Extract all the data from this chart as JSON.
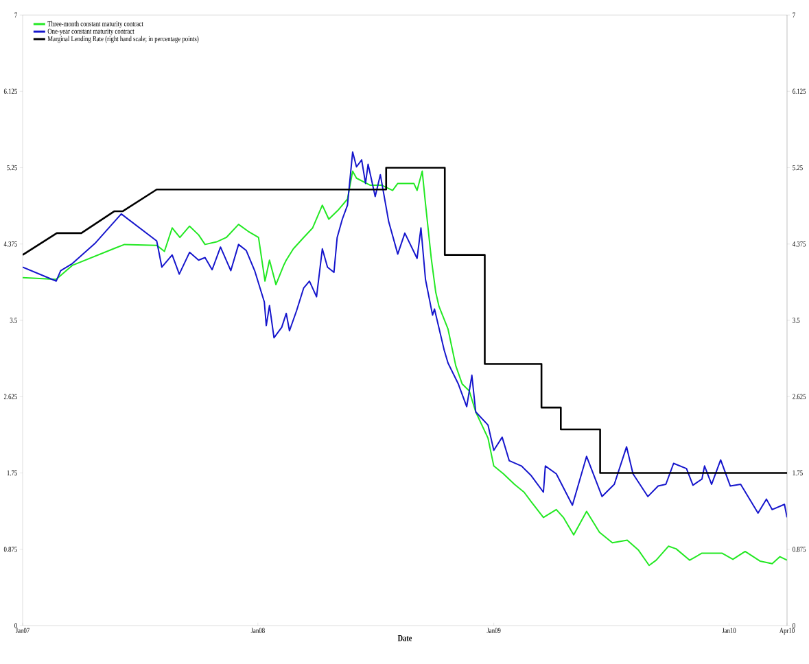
{
  "chart_data": {
    "type": "line",
    "xlabel": "Date",
    "legend": "top left",
    "grid": false,
    "marker": "none",
    "line_style": "solid",
    "xlim": [
      "2007-01-01",
      "2010-04-01"
    ],
    "xticks": [
      {
        "value": "2007-01-01",
        "label": "Jan07"
      },
      {
        "value": "2008-01-01",
        "label": "Jan08"
      },
      {
        "value": "2009-01-01",
        "label": "Jan09"
      },
      {
        "value": "2010-01-01",
        "label": "Jan10"
      },
      {
        "value": "2010-04-01",
        "label": "Apr10"
      }
    ],
    "ylim": [
      0,
      7
    ],
    "yticks": [
      0,
      0.875,
      1.75,
      2.625,
      3.5,
      4.375,
      5.25,
      6.125,
      7
    ],
    "y2lim": [
      0,
      7
    ],
    "y2ticks": [
      0,
      0.875,
      1.75,
      2.625,
      3.5,
      4.375,
      5.25,
      6.125,
      7
    ],
    "series": [
      {
        "name": "Three-month constant maturity contract",
        "color": "#22e822",
        "x": [
          "2007-01-01",
          "2007-02-22",
          "2007-03-19",
          "2007-05-25",
          "2007-06-08",
          "2007-07-28",
          "2007-08-09",
          "2007-08-21",
          "2007-09-02",
          "2007-09-17",
          "2007-10-01",
          "2007-10-11",
          "2007-10-29",
          "2007-11-13",
          "2007-12-02",
          "2007-12-17",
          "2008-01-02",
          "2008-01-12",
          "2008-01-19",
          "2008-01-29",
          "2008-02-10",
          "2008-02-14",
          "2008-02-25",
          "2008-03-12",
          "2008-03-26",
          "2008-04-10",
          "2008-04-20",
          "2008-05-04",
          "2008-05-19",
          "2008-05-27",
          "2008-06-02",
          "2008-06-23",
          "2008-07-11",
          "2008-07-28",
          "2008-08-05",
          "2008-08-30",
          "2008-09-04",
          "2008-09-12",
          "2008-09-17",
          "2008-09-26",
          "2008-10-03",
          "2008-10-08",
          "2008-10-22",
          "2008-11-03",
          "2008-11-13",
          "2008-11-24",
          "2008-12-04",
          "2008-12-23",
          "2009-01-01",
          "2009-01-16",
          "2009-02-02",
          "2009-02-17",
          "2009-02-28",
          "2009-03-19",
          "2009-04-08",
          "2009-04-19",
          "2009-05-05",
          "2009-05-25",
          "2009-06-14",
          "2009-07-04",
          "2009-07-27",
          "2009-08-13",
          "2009-08-30",
          "2009-09-10",
          "2009-09-29",
          "2009-10-11",
          "2009-11-01",
          "2009-11-20",
          "2009-12-21",
          "2010-01-07",
          "2010-01-26",
          "2010-02-18",
          "2010-03-09",
          "2010-03-21",
          "2010-04-01"
        ],
        "values": [
          3.99,
          3.97,
          4.13,
          4.33,
          4.37,
          4.36,
          4.29,
          4.56,
          4.45,
          4.58,
          4.48,
          4.37,
          4.4,
          4.45,
          4.6,
          4.52,
          4.45,
          3.95,
          4.19,
          3.91,
          4.13,
          4.19,
          4.32,
          4.45,
          4.56,
          4.82,
          4.66,
          4.76,
          4.89,
          5.21,
          5.13,
          5.05,
          5.05,
          4.99,
          5.07,
          5.07,
          4.99,
          5.21,
          4.84,
          4.21,
          3.82,
          3.66,
          3.4,
          2.98,
          2.77,
          2.69,
          2.45,
          2.15,
          1.83,
          1.74,
          1.62,
          1.53,
          1.42,
          1.24,
          1.33,
          1.24,
          1.04,
          1.31,
          1.07,
          0.95,
          0.98,
          0.87,
          0.69,
          0.75,
          0.91,
          0.88,
          0.75,
          0.83,
          0.83,
          0.76,
          0.85,
          0.74,
          0.71,
          0.79,
          0.75
        ]
      },
      {
        "name": "One-year constant maturity contract",
        "color": "#1515cc",
        "x": [
          "2007-01-01",
          "2007-02-22",
          "2007-03-01",
          "2007-03-19",
          "2007-04-23",
          "2007-06-03",
          "2007-07-28",
          "2007-08-05",
          "2007-08-21",
          "2007-09-01",
          "2007-09-17",
          "2007-10-01",
          "2007-10-11",
          "2007-10-22",
          "2007-11-04",
          "2007-11-20",
          "2007-12-02",
          "2007-12-14",
          "2007-12-27",
          "2008-01-11",
          "2008-01-14",
          "2008-01-19",
          "2008-01-26",
          "2008-02-07",
          "2008-02-14",
          "2008-02-19",
          "2008-03-01",
          "2008-03-12",
          "2008-03-21",
          "2008-04-01",
          "2008-04-10",
          "2008-04-18",
          "2008-04-28",
          "2008-05-03",
          "2008-05-11",
          "2008-05-19",
          "2008-05-27",
          "2008-06-02",
          "2008-06-10",
          "2008-06-16",
          "2008-06-20",
          "2008-07-01",
          "2008-07-09",
          "2008-07-22",
          "2008-08-05",
          "2008-08-16",
          "2008-09-04",
          "2008-09-10",
          "2008-09-17",
          "2008-09-28",
          "2008-10-01",
          "2008-10-16",
          "2008-10-22",
          "2008-11-07",
          "2008-11-20",
          "2008-11-28",
          "2008-12-04",
          "2008-12-23",
          "2009-01-01",
          "2009-01-14",
          "2009-01-25",
          "2009-02-13",
          "2009-02-28",
          "2009-03-19",
          "2009-03-22",
          "2009-04-08",
          "2009-05-03",
          "2009-05-25",
          "2009-06-18",
          "2009-07-07",
          "2009-07-26",
          "2009-08-05",
          "2009-08-28",
          "2009-09-13",
          "2009-09-25",
          "2009-10-07",
          "2009-10-27",
          "2009-11-06",
          "2009-11-20",
          "2009-11-24",
          "2009-12-05",
          "2009-12-19",
          "2010-01-03",
          "2010-01-19",
          "2010-02-15",
          "2010-02-28",
          "2010-03-09",
          "2010-03-28",
          "2010-04-01"
        ],
        "values": [
          4.11,
          3.95,
          4.07,
          4.15,
          4.38,
          4.72,
          4.41,
          4.11,
          4.25,
          4.03,
          4.28,
          4.19,
          4.22,
          4.08,
          4.34,
          4.07,
          4.37,
          4.3,
          4.07,
          3.71,
          3.44,
          3.67,
          3.3,
          3.42,
          3.58,
          3.38,
          3.61,
          3.87,
          3.95,
          3.77,
          4.32,
          4.11,
          4.05,
          4.45,
          4.66,
          4.82,
          5.43,
          5.26,
          5.34,
          5.07,
          5.29,
          4.92,
          5.17,
          4.63,
          4.26,
          4.5,
          4.21,
          4.56,
          3.97,
          3.56,
          3.63,
          3.16,
          3.01,
          2.77,
          2.51,
          2.87,
          2.45,
          2.3,
          2.01,
          2.16,
          1.89,
          1.83,
          1.72,
          1.53,
          1.83,
          1.74,
          1.38,
          1.94,
          1.48,
          1.62,
          2.05,
          1.74,
          1.48,
          1.6,
          1.62,
          1.86,
          1.8,
          1.61,
          1.68,
          1.83,
          1.62,
          1.9,
          1.6,
          1.62,
          1.29,
          1.45,
          1.33,
          1.39,
          1.24
        ]
      },
      {
        "name": "Marginal Lending Rate (right hand scale; in percentage points)",
        "color": "#000000",
        "axis": "y2",
        "x": [
          "2007-01-01",
          "2007-02-23",
          "2007-04-02",
          "2007-05-23",
          "2007-06-05",
          "2007-07-28",
          "2008-07-18",
          "2008-07-18",
          "2008-10-17",
          "2008-10-17",
          "2008-12-18",
          "2008-12-18",
          "2009-03-16",
          "2009-03-16",
          "2009-04-15",
          "2009-04-15",
          "2009-06-15",
          "2009-06-15",
          "2010-04-01"
        ],
        "values": [
          4.25,
          4.5,
          4.5,
          4.75,
          4.75,
          5.0,
          5.0,
          5.25,
          5.25,
          4.25,
          4.25,
          3.0,
          3.0,
          2.5,
          2.5,
          2.25,
          2.25,
          1.75,
          1.75
        ]
      }
    ]
  }
}
